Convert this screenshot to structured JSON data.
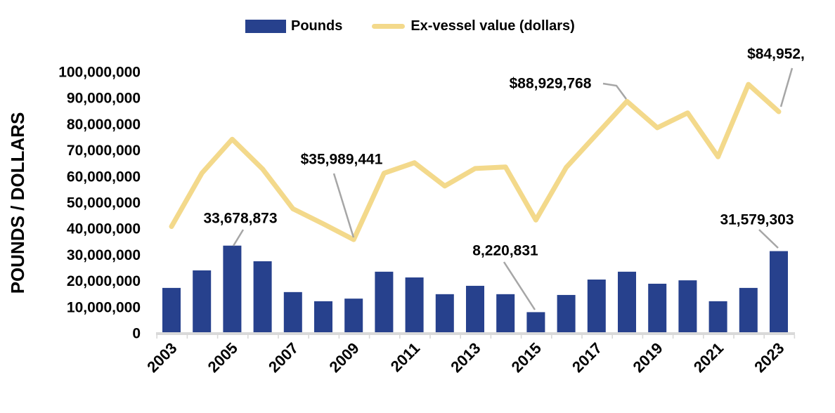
{
  "page": {
    "background": "#FFFFFF"
  },
  "legend": {
    "items": [
      {
        "label": "Pounds",
        "swatch": "bar"
      },
      {
        "label": "Ex-vessel value (dollars)",
        "swatch": "line"
      }
    ]
  },
  "y_axis": {
    "title": "POUNDS / DOLLARS",
    "tick_labels": [
      "100,000,000",
      "90,000,000",
      "80,000,000",
      "70,000,000",
      "60,000,000",
      "50,000,000",
      "40,000,000",
      "30,000,000",
      "20,000,000",
      "10,000,000",
      "0"
    ]
  },
  "x_axis": {
    "tick_labels": [
      "2003",
      "2005",
      "2007",
      "2009",
      "2011",
      "2013",
      "2015",
      "2017",
      "2019",
      "2021",
      "2023"
    ]
  },
  "colors": {
    "bar": "#27418D",
    "line": "#F3D98B",
    "leader": "#A6A6A6",
    "axis": "#D9D9D9",
    "text": "#000000"
  },
  "chart_data": {
    "type": "combo",
    "categories": [
      "2003",
      "2004",
      "2005",
      "2006",
      "2007",
      "2008",
      "2009",
      "2010",
      "2011",
      "2012",
      "2013",
      "2014",
      "2015",
      "2016",
      "2017",
      "2018",
      "2019",
      "2020",
      "2021",
      "2022",
      "2023"
    ],
    "series": [
      {
        "name": "Pounds",
        "type": "bar",
        "values": [
          17500000,
          24200000,
          33678873,
          27700000,
          15900000,
          12400000,
          13400000,
          23700000,
          21500000,
          15100000,
          18300000,
          15100000,
          8220831,
          14800000,
          20700000,
          23700000,
          19100000,
          20400000,
          12400000,
          17500000,
          31579303
        ]
      },
      {
        "name": "Ex-vessel value (dollars)",
        "type": "line",
        "values": [
          41000000,
          61400000,
          74400000,
          63000000,
          47800000,
          42000000,
          35989441,
          61400000,
          65400000,
          56500000,
          63200000,
          63800000,
          43500000,
          63600000,
          76300000,
          88929768,
          78800000,
          84500000,
          67700000,
          95400000,
          84952000
        ]
      }
    ],
    "title": "",
    "xlabel": "",
    "ylabel": "POUNDS / DOLLARS",
    "ylim": [
      0,
      100000000
    ],
    "grid": false,
    "legend_position": "top",
    "annotations": [
      {
        "target_series": "Pounds",
        "category": "2005",
        "label": "33,678,873"
      },
      {
        "target_series": "Ex-vessel value (dollars)",
        "category": "2009",
        "label": "$35,989,441"
      },
      {
        "target_series": "Pounds",
        "category": "2015",
        "label": "8,220,831"
      },
      {
        "target_series": "Ex-vessel value (dollars)",
        "category": "2018",
        "label": "$88,929,768"
      },
      {
        "target_series": "Ex-vessel value (dollars)",
        "category": "2023",
        "label": "$84,952,"
      },
      {
        "target_series": "Pounds",
        "category": "2023",
        "label": "31,579,303"
      }
    ]
  }
}
